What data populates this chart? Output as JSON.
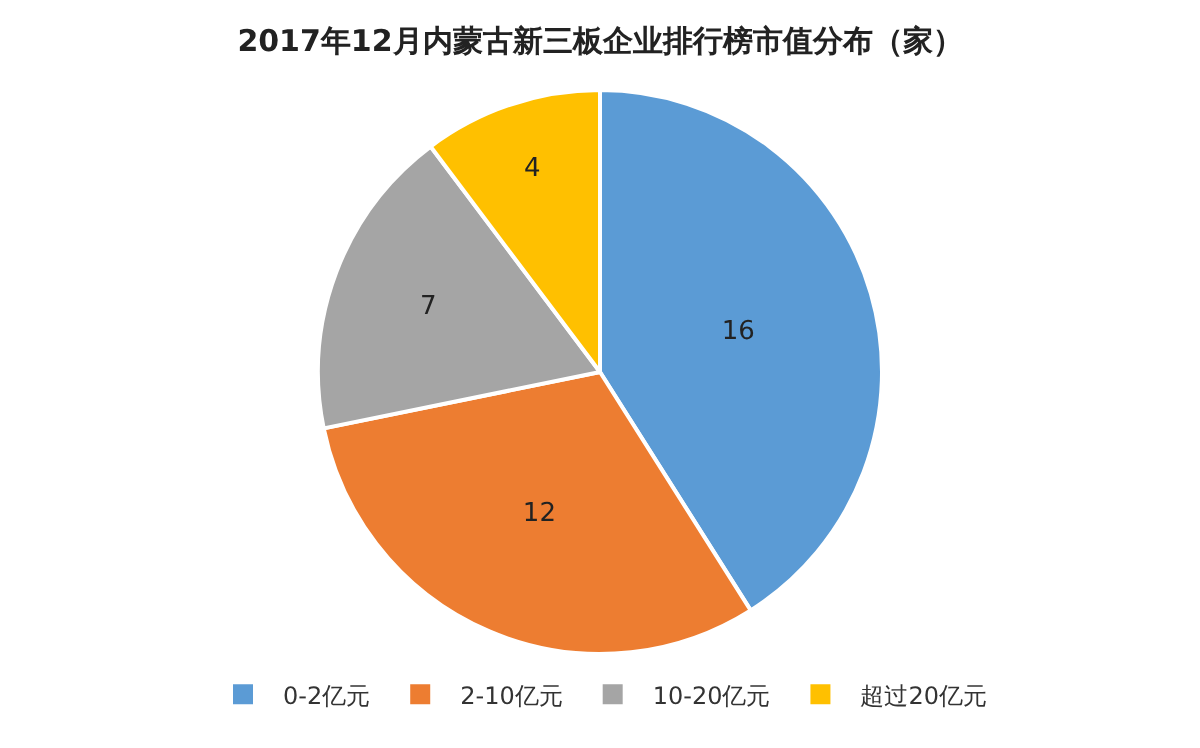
{
  "chart_data": {
    "type": "pie",
    "title": "2017年12月内蒙古新三板企业排行榜市值分布（家）",
    "categories": [
      "0-2亿元",
      "2-10亿元",
      "10-20亿元",
      "超过20亿元"
    ],
    "values": [
      16,
      12,
      7,
      4
    ],
    "colors": [
      "#5b9bd5",
      "#ed7d31",
      "#a5a5a5",
      "#ffc000"
    ],
    "data_labels": true,
    "legend": "bottom"
  }
}
